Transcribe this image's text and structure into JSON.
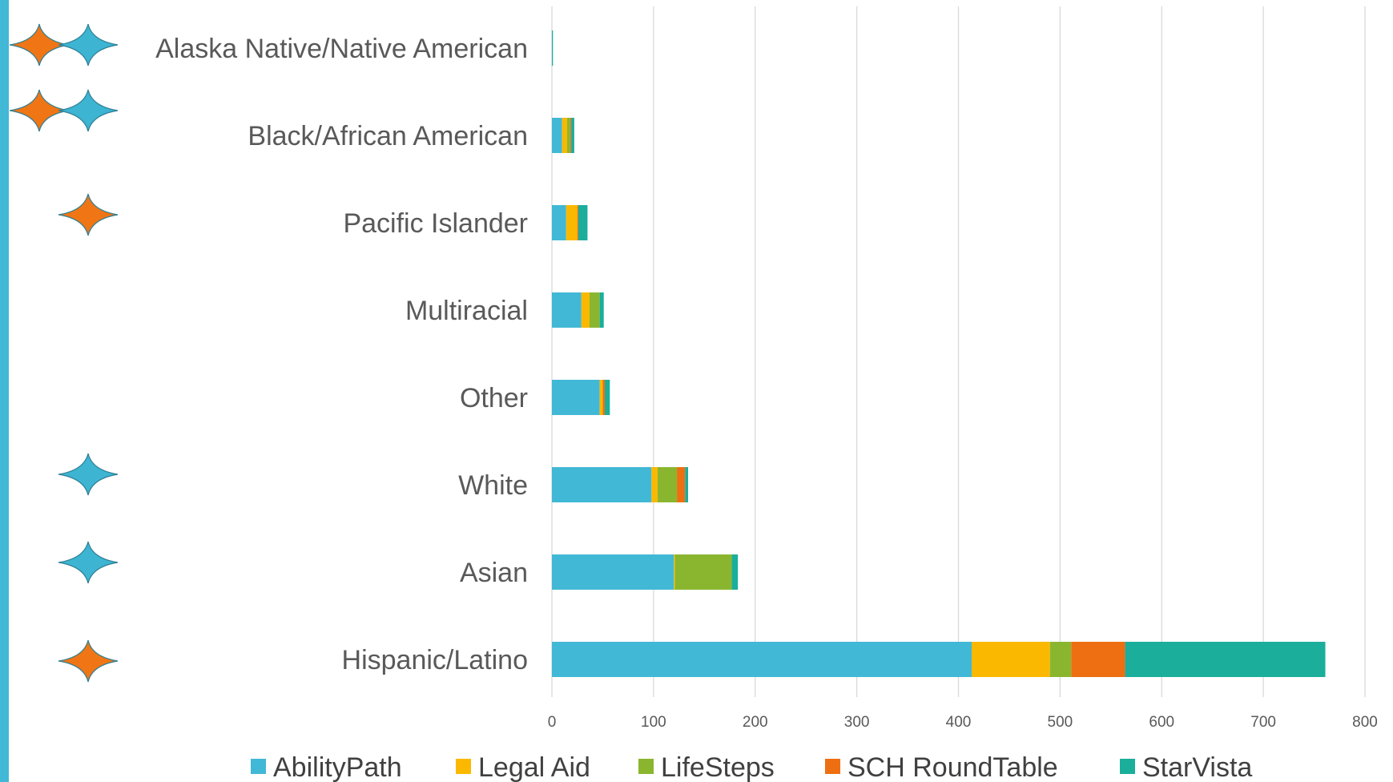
{
  "colors": {
    "AbilityPath": "#41b8d5",
    "Legal Aid": "#fbb800",
    "LifeSteps": "#8ab62f",
    "SCH RoundTable": "#ee6f12",
    "StarVista": "#1aae9b",
    "star_orange": "#ef7515",
    "star_blue": "#3db4d2",
    "star_outline": "#2e7f94"
  },
  "chart_data": {
    "type": "bar",
    "orientation": "horizontal",
    "stacked": true,
    "categories": [
      "Alaska Native/Native American",
      "Black/African American",
      "Pacific Islander",
      "Multiracial",
      "Other",
      "White",
      "Asian",
      "Hispanic/Latino"
    ],
    "series": [
      {
        "name": "AbilityPath",
        "values": [
          0,
          10,
          14,
          29,
          47,
          98,
          120,
          413
        ]
      },
      {
        "name": "Legal Aid",
        "values": [
          0,
          5,
          11,
          8,
          3,
          6,
          1,
          77
        ]
      },
      {
        "name": "LifeSteps",
        "values": [
          0,
          3,
          0,
          10,
          0,
          19,
          56,
          21
        ]
      },
      {
        "name": "SCH RoundTable",
        "values": [
          0,
          1,
          1,
          0,
          2,
          8,
          0,
          53
        ]
      },
      {
        "name": "StarVista",
        "values": [
          1,
          3,
          9,
          4,
          5,
          3,
          6,
          197
        ]
      }
    ],
    "xlim": [
      0,
      800
    ],
    "xticks": [
      "0",
      "100",
      "200",
      "300",
      "400",
      "500",
      "600",
      "700",
      "800"
    ],
    "grid": true,
    "legend": "bottom",
    "markers": [
      [
        "star_orange",
        "star_blue"
      ],
      [
        "star_orange",
        "star_blue"
      ],
      [
        "star_orange"
      ],
      [],
      [],
      [
        "star_blue"
      ],
      [
        "star_blue"
      ],
      [
        "star_orange"
      ]
    ]
  }
}
